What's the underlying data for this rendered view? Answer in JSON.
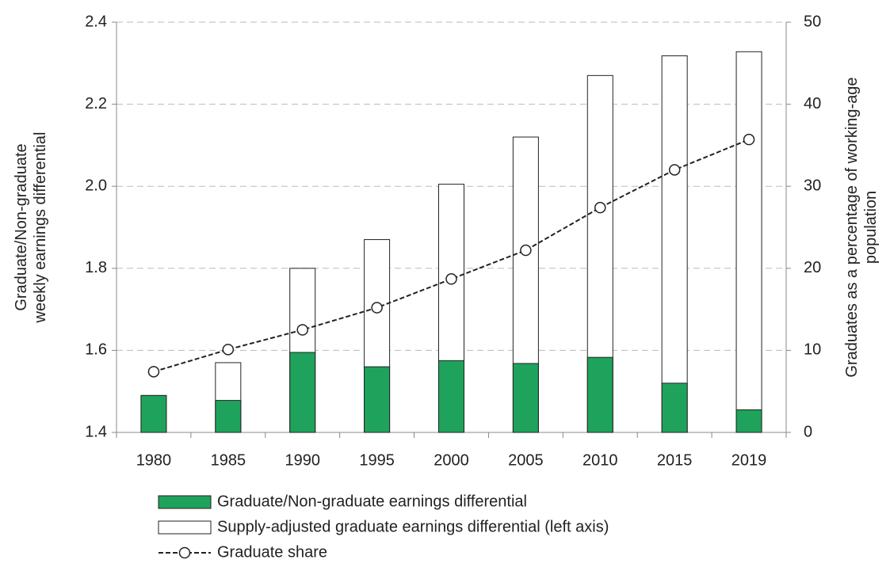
{
  "chart_data": {
    "type": "bar",
    "categories": [
      "1980",
      "1985",
      "1990",
      "1995",
      "2000",
      "2005",
      "2010",
      "2015",
      "2019"
    ],
    "series": [
      {
        "name": "Supply-adjusted graduate earnings differential (left axis)",
        "type": "bar",
        "color": "#ffffff",
        "values": [
          1.49,
          1.57,
          1.8,
          1.87,
          2.005,
          2.12,
          2.27,
          2.318,
          2.328
        ]
      },
      {
        "name": "Graduate/Non-graduate earnings differential",
        "type": "bar",
        "color": "#1fa35c",
        "values": [
          1.49,
          1.478,
          1.595,
          1.56,
          1.575,
          1.568,
          1.583,
          1.52,
          1.455
        ]
      },
      {
        "name": "Graduate share",
        "type": "line",
        "axis": "y2",
        "color": "#222222",
        "values": [
          7.4,
          10.1,
          12.5,
          15.2,
          18.7,
          22.2,
          27.4,
          32.0,
          35.7
        ]
      }
    ],
    "ylabel": [
      "Graduate/Non-graduate",
      "weekly earnings differential"
    ],
    "y2label": [
      "Graduates as a percentage of working-age",
      "population"
    ],
    "ylim": [
      1.4,
      2.4
    ],
    "yticks": [
      1.4,
      1.6,
      1.8,
      {
        "value": 2,
        "label": "2.0"
      },
      2.2,
      2.4
    ],
    "y2lim": [
      0,
      50
    ],
    "y2ticks": [
      0,
      10,
      20,
      30,
      40,
      50
    ],
    "grid": true
  }
}
